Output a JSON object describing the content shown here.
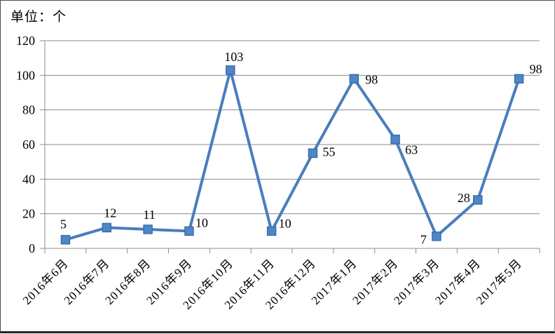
{
  "chart_data": {
    "type": "line",
    "title": "",
    "unit_label": "单位：个",
    "categories": [
      "2016年6月",
      "2016年7月",
      "2016年8月",
      "2016年9月",
      "2016年10月",
      "2016年11月",
      "2016年12月",
      "2017年1月",
      "2017年2月",
      "2017年3月",
      "2017年4月",
      "2017年5月"
    ],
    "values": [
      5,
      12,
      11,
      10,
      103,
      10,
      55,
      98,
      63,
      7,
      28,
      98
    ],
    "xlabel": "",
    "ylabel": "",
    "ylim": [
      0,
      120
    ],
    "ytick_interval": 20,
    "yticks": [
      0,
      20,
      40,
      60,
      80,
      100,
      120
    ],
    "grid": true,
    "legend_position": "none",
    "marker_shape": "square",
    "data_labels_visible": true,
    "colors": {
      "line": "#4a7ebb",
      "marker_fill": "#4f86c6",
      "marker_border": "#3a6eb0",
      "gridline": "#8c8c8c",
      "axis": "#8c8c8c",
      "text": "#000000"
    }
  }
}
